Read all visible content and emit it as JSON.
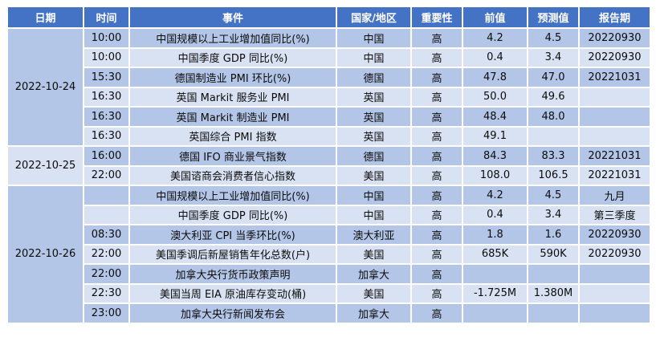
{
  "colors": {
    "header_bg": "#4472C4",
    "header_text": "#FFFFFF",
    "band_dark": "#B4C6E7",
    "band_light": "#D9E2F3",
    "grid": "#FFFFFF",
    "body_text": "#0B0B0B"
  },
  "chart_data": {
    "type": "table",
    "title": "",
    "columns": [
      "日期",
      "时间",
      "事件",
      "国家/地区",
      "重要性",
      "前值",
      "预测值",
      "报告期"
    ],
    "date_groups": [
      {
        "label": "2022-10-24",
        "start": 0,
        "span": 6
      },
      {
        "label": "2022-10-25",
        "start": 6,
        "span": 2
      },
      {
        "label": "2022-10-26",
        "start": 8,
        "span": 7
      }
    ],
    "rows": [
      {
        "time": "10:00",
        "event": "中国规模以上工业增加值同比(%)",
        "country": "中国",
        "importance": "高",
        "previous": "4.2",
        "forecast": "4.5",
        "period": "20220930"
      },
      {
        "time": "10:00",
        "event": "中国季度 GDP 同比(%)",
        "country": "中国",
        "importance": "高",
        "previous": "0.4",
        "forecast": "3.4",
        "period": "20220930"
      },
      {
        "time": "15:30",
        "event": "德国制造业 PMI 环比(%)",
        "country": "德国",
        "importance": "高",
        "previous": "47.8",
        "forecast": "47.0",
        "period": "20221031"
      },
      {
        "time": "16:30",
        "event": "英国 Markit 服务业 PMI",
        "country": "英国",
        "importance": "高",
        "previous": "50.0",
        "forecast": "49.6",
        "period": ""
      },
      {
        "time": "16:30",
        "event": "英国 Markit 制造业 PMI",
        "country": "英国",
        "importance": "高",
        "previous": "48.4",
        "forecast": "48.0",
        "period": ""
      },
      {
        "time": "16:30",
        "event": "英国综合 PMI 指数",
        "country": "英国",
        "importance": "高",
        "previous": "49.1",
        "forecast": "",
        "period": ""
      },
      {
        "time": "16:00",
        "event": "德国 IFO 商业景气指数",
        "country": "德国",
        "importance": "高",
        "previous": "84.3",
        "forecast": "83.3",
        "period": "20221031"
      },
      {
        "time": "22:00",
        "event": "美国谘商会消费者信心指数",
        "country": "美国",
        "importance": "高",
        "previous": "108.0",
        "forecast": "106.5",
        "period": "20221031"
      },
      {
        "time": "",
        "event": "中国规模以上工业增加值同比(%)",
        "country": "中国",
        "importance": "高",
        "previous": "4.2",
        "forecast": "4.5",
        "period": "九月"
      },
      {
        "time": "",
        "event": "中国季度 GDP 同比(%)",
        "country": "中国",
        "importance": "高",
        "previous": "0.4",
        "forecast": "3.4",
        "period": "第三季度"
      },
      {
        "time": "08:30",
        "event": "澳大利亚 CPI 当季环比(%)",
        "country": "澳大利亚",
        "importance": "高",
        "previous": "1.8",
        "forecast": "1.6",
        "period": "20220930"
      },
      {
        "time": "22:00",
        "event": "美国季调后新屋销售年化总数(户)",
        "country": "美国",
        "importance": "高",
        "previous": "685K",
        "forecast": "590K",
        "period": "20220930"
      },
      {
        "time": "22:00",
        "event": "加拿大央行货币政策声明",
        "country": "加拿大",
        "importance": "高",
        "previous": "",
        "forecast": "",
        "period": ""
      },
      {
        "time": "22:30",
        "event": "美国当周 EIA 原油库存变动(桶)",
        "country": "美国",
        "importance": "高",
        "previous": "-1.725M",
        "forecast": "1.380M",
        "period": ""
      },
      {
        "time": "23:00",
        "event": "加拿大央行新闻发布会",
        "country": "加拿大",
        "importance": "高",
        "previous": "",
        "forecast": "",
        "period": ""
      }
    ]
  }
}
